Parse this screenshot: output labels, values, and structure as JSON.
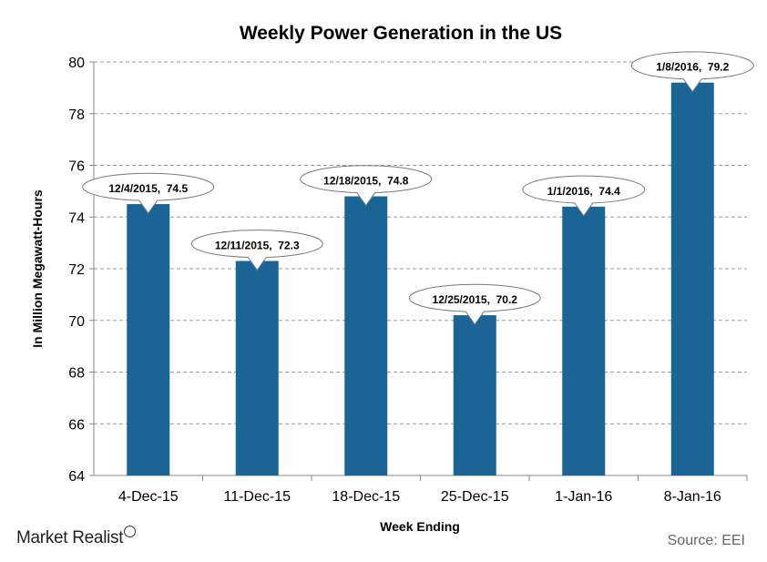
{
  "chart_data": {
    "type": "bar",
    "title": "Weekly  Power  Generation  in  the  US",
    "xlabel": "Week Ending",
    "ylabel": "In Million Megawatt-Hours",
    "categories": [
      "4-Dec-15",
      "11-Dec-15",
      "18-Dec-15",
      "25-Dec-15",
      "1-Jan-16",
      "8-Jan-16"
    ],
    "values": [
      74.5,
      72.3,
      74.8,
      70.2,
      74.4,
      79.2
    ],
    "data_labels": [
      "12/4/2015,  74.5",
      "12/11/2015,  72.3",
      "12/18/2015,  74.8",
      "12/25/2015,  70.2",
      "1/1/2016,  74.4",
      "1/8/2016,  79.2"
    ],
    "ylim": [
      64,
      80
    ],
    "yticks": [
      64,
      66,
      68,
      70,
      72,
      74,
      76,
      78,
      80
    ],
    "grid": true,
    "bar_color": "#1a6496"
  },
  "footer": {
    "brand": "Market Realist",
    "source": "Source: EEI"
  }
}
